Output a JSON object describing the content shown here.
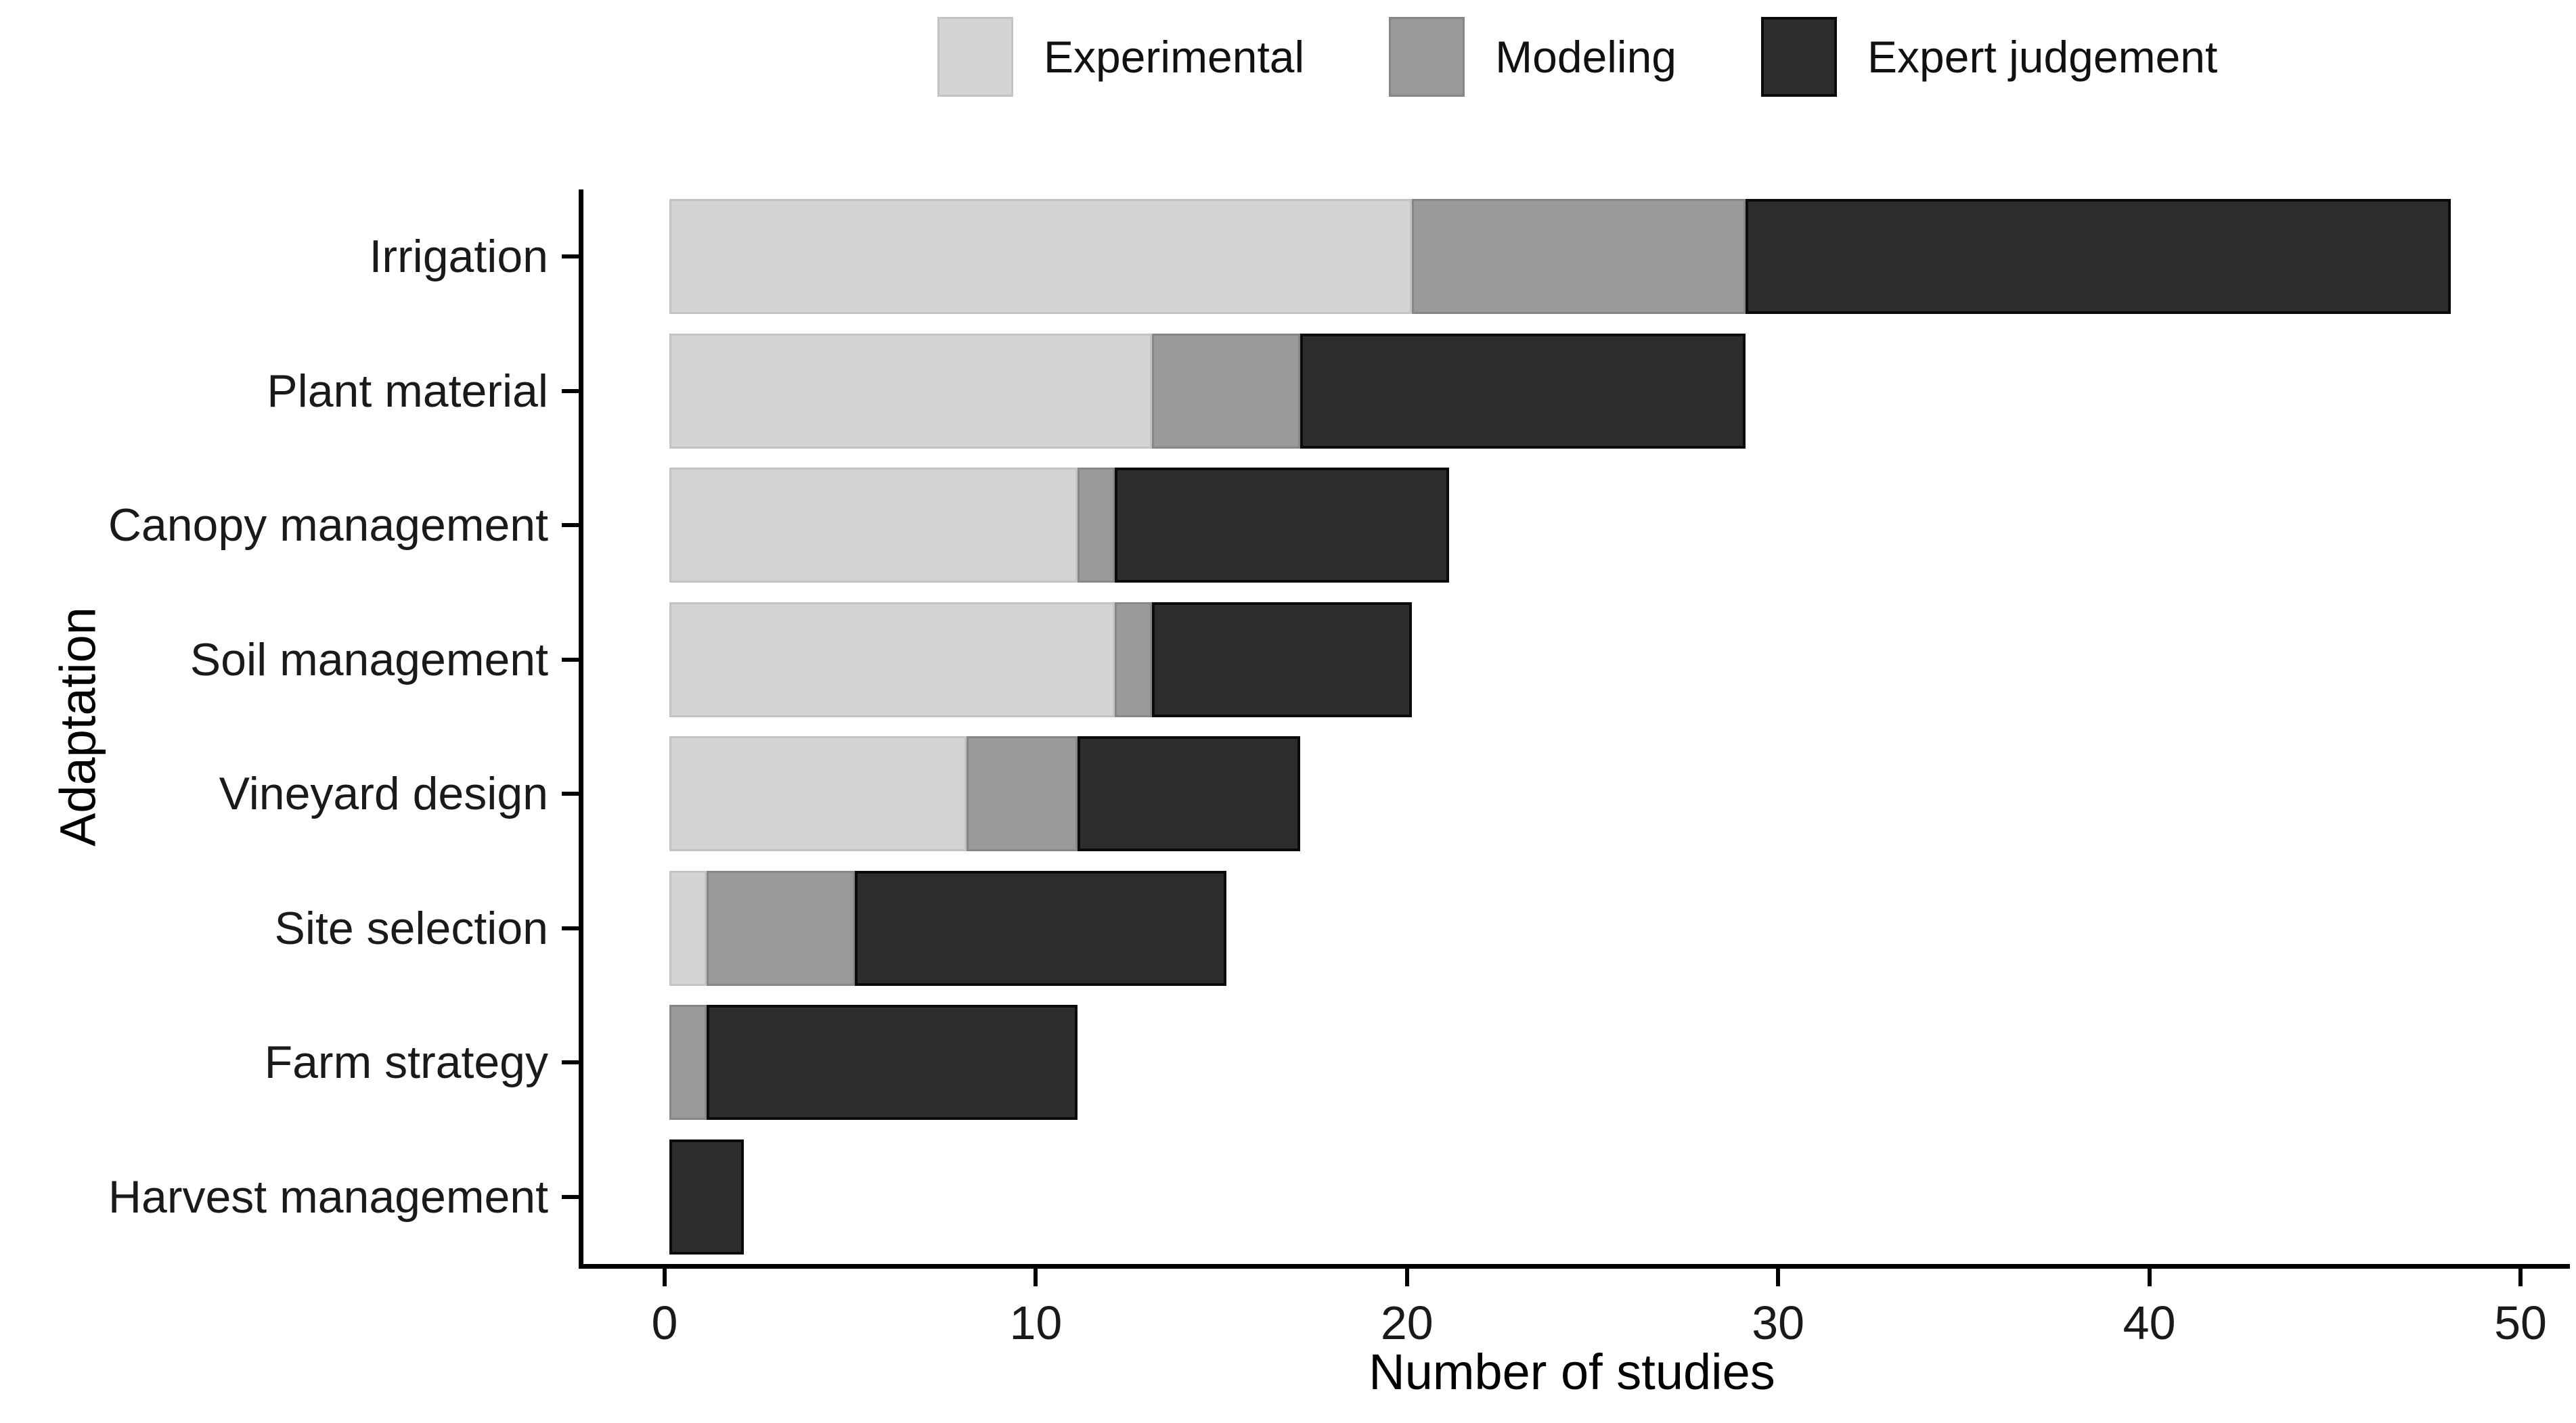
{
  "chart_data": {
    "type": "bar",
    "orientation": "horizontal",
    "stacked": true,
    "title": "",
    "xlabel": "Number of studies",
    "ylabel": "Adaptation",
    "xlim": [
      0,
      50
    ],
    "x_ticks": [
      0,
      10,
      20,
      30,
      40,
      50
    ],
    "grid": false,
    "legend_position": "top",
    "categories": [
      "Irrigation",
      "Plant material",
      "Canopy management",
      "Soil management",
      "Vineyard design",
      "Site selection",
      "Farm strategy",
      "Harvest management"
    ],
    "series": [
      {
        "name": "Experimental",
        "color": "#d4d4d4",
        "values": [
          20,
          13,
          11,
          12,
          8,
          1,
          0,
          0
        ]
      },
      {
        "name": "Modeling",
        "color": "#9a9a9a",
        "values": [
          9,
          4,
          1,
          1,
          3,
          4,
          1,
          0
        ]
      },
      {
        "name": "Expert judgement",
        "color": "#2d2d2d",
        "values": [
          19,
          12,
          9,
          7,
          6,
          10,
          10,
          2
        ]
      }
    ]
  }
}
